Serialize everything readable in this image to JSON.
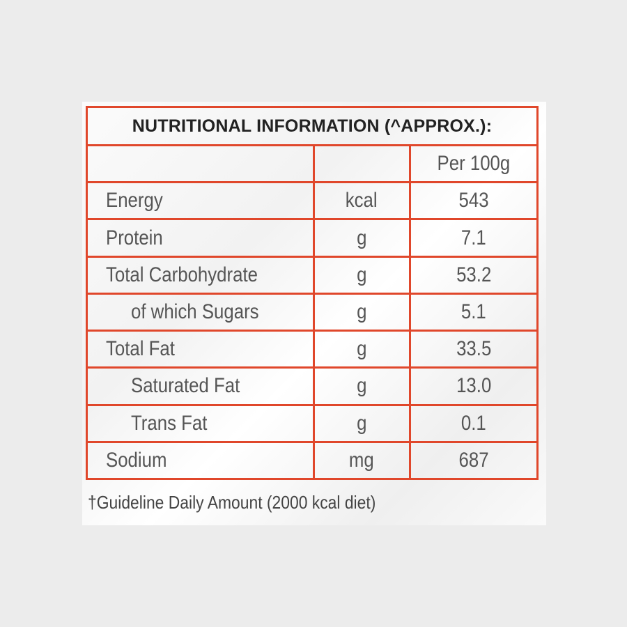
{
  "title": "NUTRITIONAL INFORMATION (^APPROX.):",
  "header": {
    "name": "",
    "unit": "",
    "value": "Per 100g"
  },
  "rows": [
    {
      "name": "Energy",
      "unit": "kcal",
      "value": "543"
    },
    {
      "name": "Protein",
      "unit": "g",
      "value": "7.1"
    },
    {
      "name": "Total Carbohydrate",
      "unit": "g",
      "value": "53.2"
    },
    {
      "name": "of which Sugars",
      "unit": "g",
      "value": "5.1"
    },
    {
      "name": "Total Fat",
      "unit": "g",
      "value": "33.5"
    },
    {
      "name": "Saturated Fat",
      "unit": "g",
      "value": "13.0"
    },
    {
      "name": "Trans Fat",
      "unit": "g",
      "value": "0.1"
    },
    {
      "name": "Sodium",
      "unit": "mg",
      "value": "687"
    }
  ],
  "footnote": "†Guideline Daily Amount (2000 kcal diet)",
  "colors": {
    "border": "#e0472b",
    "background": "#ececec",
    "text": "#555555"
  }
}
